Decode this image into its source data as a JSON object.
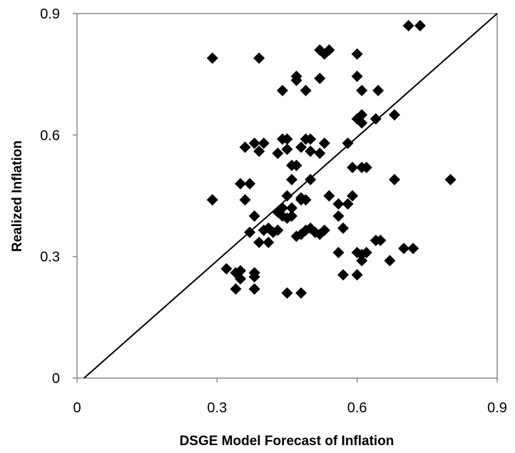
{
  "chart_data": {
    "type": "scatter",
    "x_label": "DSGE Model Forecast of Inflation",
    "y_label": "Realized Inflation",
    "xlim": [
      0,
      0.9
    ],
    "ylim": [
      0,
      0.9
    ],
    "xticks": [
      0,
      0.3,
      0.6,
      0.9
    ],
    "yticks": [
      0,
      0.3,
      0.6,
      0.9
    ],
    "grid": false,
    "color": "#000000",
    "reference_line": {
      "x": [
        0.015,
        0.9
      ],
      "y": [
        0,
        0.9
      ]
    },
    "x": [
      0.29,
      0.29,
      0.39,
      0.52,
      0.54,
      0.53,
      0.6,
      0.71,
      0.735,
      0.47,
      0.47,
      0.52,
      0.44,
      0.49,
      0.6,
      0.61,
      0.645,
      0.61,
      0.6,
      0.61,
      0.64,
      0.68,
      0.36,
      0.38,
      0.4,
      0.39,
      0.44,
      0.45,
      0.43,
      0.45,
      0.49,
      0.5,
      0.48,
      0.5,
      0.52,
      0.53,
      0.58,
      0.46,
      0.47,
      0.59,
      0.61,
      0.62,
      0.68,
      0.8,
      0.46,
      0.5,
      0.35,
      0.37,
      0.36,
      0.45,
      0.48,
      0.48,
      0.49,
      0.54,
      0.59,
      0.56,
      0.58,
      0.46,
      0.44,
      0.38,
      0.43,
      0.44,
      0.46,
      0.45,
      0.56,
      0.4,
      0.41,
      0.42,
      0.43,
      0.47,
      0.48,
      0.49,
      0.5,
      0.51,
      0.52,
      0.53,
      0.57,
      0.37,
      0.39,
      0.41,
      0.64,
      0.65,
      0.56,
      0.6,
      0.61,
      0.62,
      0.7,
      0.72,
      0.61,
      0.67,
      0.32,
      0.34,
      0.35,
      0.38,
      0.35,
      0.38,
      0.57,
      0.6,
      0.34,
      0.38,
      0.45,
      0.48
    ],
    "values": [
      0.79,
      0.44,
      0.79,
      0.81,
      0.81,
      0.8,
      0.8,
      0.87,
      0.87,
      0.745,
      0.735,
      0.74,
      0.71,
      0.71,
      0.745,
      0.71,
      0.71,
      0.65,
      0.64,
      0.63,
      0.64,
      0.65,
      0.57,
      0.58,
      0.58,
      0.56,
      0.59,
      0.59,
      0.555,
      0.565,
      0.59,
      0.59,
      0.57,
      0.56,
      0.555,
      0.58,
      0.58,
      0.525,
      0.525,
      0.52,
      0.52,
      0.52,
      0.49,
      0.49,
      0.49,
      0.49,
      0.48,
      0.48,
      0.44,
      0.45,
      0.44,
      0.445,
      0.44,
      0.45,
      0.45,
      0.43,
      0.43,
      0.42,
      0.42,
      0.4,
      0.41,
      0.4,
      0.4,
      0.395,
      0.4,
      0.365,
      0.37,
      0.36,
      0.365,
      0.35,
      0.355,
      0.365,
      0.37,
      0.36,
      0.355,
      0.365,
      0.37,
      0.36,
      0.335,
      0.335,
      0.34,
      0.34,
      0.31,
      0.31,
      0.305,
      0.31,
      0.32,
      0.32,
      0.29,
      0.29,
      0.27,
      0.26,
      0.265,
      0.26,
      0.245,
      0.25,
      0.255,
      0.255,
      0.22,
      0.22,
      0.21,
      0.21
    ]
  }
}
